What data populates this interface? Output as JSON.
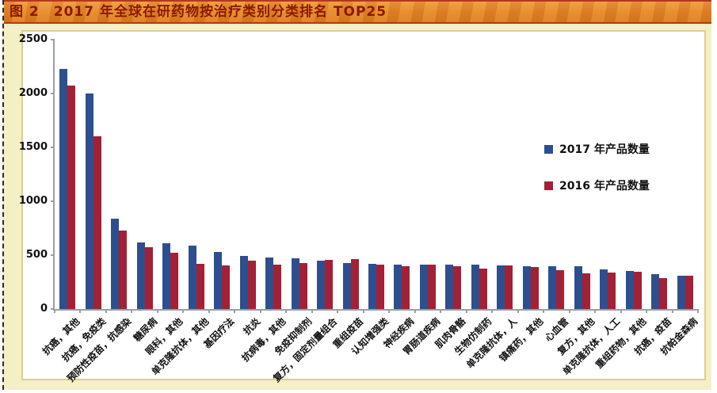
{
  "page": {
    "title": "图 2　2017 年全球在研药物按治疗类别分类排名 TOP25"
  },
  "colors": {
    "title_bar": "#E4882B",
    "title_text": "#8C1A00",
    "panel_background": "#F5EFC6",
    "chart_border": "#DACF8E",
    "axis": "#98A0A6",
    "bar_2017": "#2E4F8E",
    "bar_2016": "#A22136"
  },
  "chart_data": {
    "type": "bar",
    "title": "图 2　2017 年全球在研药物按治疗类别分类排名 TOP25",
    "xlabel": "",
    "ylabel": "",
    "ylim": [
      0,
      2500
    ],
    "yticks": [
      0,
      500,
      1000,
      1500,
      2000,
      2500
    ],
    "grid": false,
    "legend_position": "center-right",
    "categories": [
      "抗癌，其他",
      "抗癌，免疫类",
      "预防性疫苗，抗感染",
      "糖尿病",
      "眼科，其他",
      "单克隆抗体，其他",
      "基因疗法",
      "抗炎",
      "抗病毒，其他",
      "免疫抑制剂",
      "复方，固定剂量组合",
      "重组疫苗",
      "认知增强类",
      "神经疾病",
      "胃肠道疾病",
      "肌肉骨骼",
      "生物仿制药",
      "单克隆抗体，人",
      "镇痛药，其他",
      "心血管",
      "复方，其他",
      "单克隆抗体，人工",
      "重组药物，其他",
      "抗癌，疫苗",
      "抗帕金森病"
    ],
    "series": [
      {
        "name": "2017 年产品数量",
        "color": "#2E4F8E",
        "values": [
          2230,
          2000,
          840,
          615,
          610,
          585,
          530,
          495,
          480,
          470,
          445,
          430,
          420,
          415,
          415,
          410,
          410,
          405,
          400,
          400,
          395,
          365,
          350,
          325,
          310
        ]
      },
      {
        "name": "2016 年产品数量",
        "color": "#A22136",
        "values": [
          2070,
          1600,
          730,
          575,
          525,
          420,
          405,
          450,
          415,
          430,
          455,
          465,
          410,
          395,
          415,
          400,
          375,
          405,
          390,
          360,
          330,
          335,
          345,
          290,
          310
        ]
      }
    ]
  }
}
